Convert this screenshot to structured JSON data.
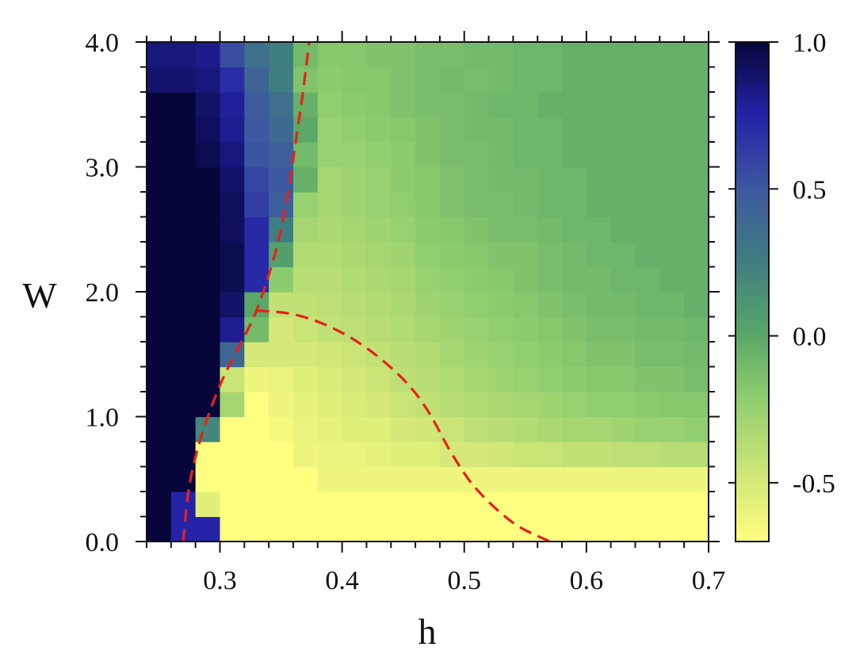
{
  "chart_data": {
    "type": "heatmap",
    "xlabel": "h",
    "ylabel": "W",
    "xlim": [
      0.24,
      0.7
    ],
    "ylim": [
      0.0,
      4.0
    ],
    "x_ticks": [
      {
        "value": 0.3,
        "label": "0.3"
      },
      {
        "value": 0.4,
        "label": "0.4"
      },
      {
        "value": 0.5,
        "label": "0.5"
      },
      {
        "value": 0.6,
        "label": "0.6"
      },
      {
        "value": 0.7,
        "label": "0.7"
      }
    ],
    "y_ticks": [
      {
        "value": 0.0,
        "label": "0.0"
      },
      {
        "value": 1.0,
        "label": "1.0"
      },
      {
        "value": 2.0,
        "label": "2.0"
      },
      {
        "value": 3.0,
        "label": "3.0"
      },
      {
        "value": 4.0,
        "label": "4.0"
      }
    ],
    "colorbar": {
      "range": [
        -0.7,
        1.0
      ],
      "ticks": [
        {
          "value": 1.0,
          "label": "1.0"
        },
        {
          "value": 0.5,
          "label": "0.5"
        },
        {
          "value": 0.0,
          "label": "0.0"
        },
        {
          "value": -0.5,
          "label": "-0.5"
        }
      ],
      "colormap": [
        {
          "v": -0.7,
          "color": "#ffff80"
        },
        {
          "v": -0.5,
          "color": "#d6e978"
        },
        {
          "v": -0.2,
          "color": "#8ccc6e"
        },
        {
          "v": 0.0,
          "color": "#5aa767"
        },
        {
          "v": 0.25,
          "color": "#3f7e80"
        },
        {
          "v": 0.5,
          "color": "#3d58a0"
        },
        {
          "v": 0.75,
          "color": "#2423a8"
        },
        {
          "v": 1.0,
          "color": "#06063a"
        }
      ]
    },
    "grid": {
      "x_start": 0.24,
      "x_step": 0.02,
      "nx": 23,
      "y_start": 0.0,
      "y_step": 0.2,
      "ny": 20
    },
    "values_rows_bottom_to_top": [
      [
        1.0,
        0.75,
        0.75,
        -0.7,
        -0.7,
        -0.7,
        -0.7,
        -0.7,
        -0.7,
        -0.7,
        -0.7,
        -0.7,
        -0.7,
        -0.7,
        -0.7,
        -0.7,
        -0.7,
        -0.7,
        -0.7,
        -0.7,
        -0.7,
        -0.7,
        -0.7
      ],
      [
        1.0,
        0.75,
        -0.55,
        -0.7,
        -0.7,
        -0.7,
        -0.7,
        -0.7,
        -0.7,
        -0.7,
        -0.7,
        -0.7,
        -0.7,
        -0.7,
        -0.7,
        -0.7,
        -0.7,
        -0.7,
        -0.7,
        -0.7,
        -0.7,
        -0.7,
        -0.7
      ],
      [
        1.0,
        1.0,
        -0.7,
        -0.7,
        -0.7,
        -0.7,
        -0.7,
        -0.62,
        -0.62,
        -0.62,
        -0.62,
        -0.62,
        -0.62,
        -0.62,
        -0.62,
        -0.62,
        -0.62,
        -0.62,
        -0.62,
        -0.62,
        -0.62,
        -0.62,
        -0.62
      ],
      [
        1.0,
        1.0,
        -0.7,
        -0.7,
        -0.7,
        -0.7,
        -0.62,
        -0.6,
        -0.6,
        -0.58,
        -0.55,
        -0.55,
        -0.5,
        -0.5,
        -0.48,
        -0.45,
        -0.45,
        -0.42,
        -0.42,
        -0.4,
        -0.4,
        -0.38,
        -0.38
      ],
      [
        1.0,
        1.0,
        0.2,
        -0.7,
        -0.7,
        -0.65,
        -0.6,
        -0.58,
        -0.55,
        -0.55,
        -0.5,
        -0.48,
        -0.45,
        -0.4,
        -0.38,
        -0.35,
        -0.32,
        -0.3,
        -0.3,
        -0.28,
        -0.25,
        -0.25,
        -0.22
      ],
      [
        1.0,
        1.0,
        1.0,
        -0.3,
        -0.7,
        -0.62,
        -0.58,
        -0.55,
        -0.52,
        -0.5,
        -0.45,
        -0.42,
        -0.38,
        -0.35,
        -0.32,
        -0.3,
        -0.28,
        -0.25,
        -0.22,
        -0.22,
        -0.2,
        -0.18,
        -0.18
      ],
      [
        1.0,
        1.0,
        1.0,
        -0.45,
        -0.62,
        -0.6,
        -0.55,
        -0.52,
        -0.5,
        -0.45,
        -0.4,
        -0.38,
        -0.35,
        -0.3,
        -0.28,
        -0.25,
        -0.22,
        -0.2,
        -0.18,
        -0.18,
        -0.15,
        -0.15,
        -0.12
      ],
      [
        1.0,
        1.0,
        1.0,
        0.4,
        -0.5,
        -0.5,
        -0.5,
        -0.48,
        -0.45,
        -0.42,
        -0.38,
        -0.35,
        -0.3,
        -0.28,
        -0.25,
        -0.22,
        -0.2,
        -0.18,
        -0.15,
        -0.15,
        -0.12,
        -0.12,
        -0.1
      ],
      [
        1.0,
        1.0,
        1.0,
        0.8,
        -0.1,
        -0.5,
        -0.45,
        -0.42,
        -0.4,
        -0.38,
        -0.35,
        -0.3,
        -0.28,
        -0.25,
        -0.22,
        -0.2,
        -0.18,
        -0.15,
        -0.12,
        -0.12,
        -0.1,
        -0.1,
        -0.08
      ],
      [
        1.0,
        1.0,
        1.0,
        0.9,
        0.0,
        -0.42,
        -0.42,
        -0.4,
        -0.38,
        -0.35,
        -0.32,
        -0.28,
        -0.25,
        -0.22,
        -0.2,
        -0.18,
        -0.15,
        -0.12,
        -0.1,
        -0.1,
        -0.08,
        -0.08,
        -0.05
      ],
      [
        1.0,
        1.0,
        1.0,
        0.95,
        0.72,
        -0.2,
        -0.38,
        -0.38,
        -0.35,
        -0.32,
        -0.3,
        -0.25,
        -0.22,
        -0.2,
        -0.18,
        -0.15,
        -0.12,
        -0.1,
        -0.1,
        -0.08,
        -0.08,
        -0.05,
        -0.05
      ],
      [
        1.0,
        1.0,
        1.0,
        0.95,
        0.72,
        0.05,
        -0.35,
        -0.35,
        -0.32,
        -0.3,
        -0.28,
        -0.22,
        -0.2,
        -0.18,
        -0.15,
        -0.15,
        -0.12,
        -0.1,
        -0.08,
        -0.08,
        -0.05,
        -0.05,
        -0.05
      ],
      [
        1.0,
        1.0,
        1.0,
        0.92,
        0.72,
        0.25,
        -0.3,
        -0.32,
        -0.3,
        -0.28,
        -0.25,
        -0.2,
        -0.18,
        -0.15,
        -0.12,
        -0.12,
        -0.1,
        -0.08,
        -0.08,
        -0.05,
        -0.05,
        -0.05,
        -0.05
      ],
      [
        1.0,
        1.0,
        1.0,
        0.92,
        0.62,
        0.45,
        -0.25,
        -0.3,
        -0.28,
        -0.25,
        -0.22,
        -0.18,
        -0.15,
        -0.12,
        -0.12,
        -0.1,
        -0.08,
        -0.08,
        -0.05,
        -0.05,
        -0.05,
        -0.05,
        -0.05
      ],
      [
        1.0,
        1.0,
        1.0,
        0.9,
        0.58,
        0.5,
        -0.05,
        -0.3,
        -0.28,
        -0.25,
        -0.2,
        -0.18,
        -0.15,
        -0.12,
        -0.1,
        -0.1,
        -0.08,
        -0.08,
        -0.05,
        -0.05,
        -0.05,
        -0.05,
        -0.05
      ],
      [
        1.0,
        1.0,
        0.95,
        0.85,
        0.52,
        0.45,
        -0.1,
        -0.25,
        -0.25,
        -0.22,
        -0.2,
        -0.15,
        -0.12,
        -0.12,
        -0.1,
        -0.08,
        -0.08,
        -0.05,
        -0.05,
        -0.05,
        -0.05,
        -0.05,
        -0.05
      ],
      [
        1.0,
        1.0,
        0.92,
        0.8,
        0.5,
        0.38,
        0.0,
        -0.25,
        -0.22,
        -0.2,
        -0.18,
        -0.15,
        -0.12,
        -0.1,
        -0.1,
        -0.08,
        -0.08,
        -0.05,
        -0.05,
        -0.05,
        -0.05,
        -0.05,
        -0.05
      ],
      [
        1.0,
        1.0,
        0.9,
        0.78,
        0.48,
        0.35,
        -0.05,
        -0.22,
        -0.2,
        -0.18,
        -0.15,
        -0.12,
        -0.12,
        -0.1,
        -0.08,
        -0.08,
        -0.05,
        -0.05,
        -0.05,
        -0.05,
        -0.05,
        -0.05,
        -0.05
      ],
      [
        0.88,
        0.88,
        0.85,
        0.7,
        0.42,
        0.25,
        -0.15,
        -0.2,
        -0.18,
        -0.18,
        -0.15,
        -0.12,
        -0.1,
        -0.12,
        -0.1,
        -0.08,
        -0.08,
        -0.05,
        -0.05,
        -0.05,
        -0.05,
        -0.05,
        -0.05
      ],
      [
        0.85,
        0.85,
        0.82,
        0.55,
        0.35,
        0.25,
        -0.1,
        -0.18,
        -0.18,
        -0.15,
        -0.15,
        -0.12,
        -0.12,
        -0.1,
        -0.1,
        -0.08,
        -0.08,
        -0.05,
        -0.05,
        -0.05,
        -0.05,
        -0.05,
        -0.05
      ]
    ],
    "boundaries": [
      {
        "style": "dashed",
        "color": "#e8201a",
        "points": [
          [
            0.27,
            0.0
          ],
          [
            0.275,
            0.45
          ],
          [
            0.285,
            0.85
          ],
          [
            0.3,
            1.25
          ],
          [
            0.315,
            1.55
          ],
          [
            0.33,
            1.85
          ],
          [
            0.345,
            2.3
          ],
          [
            0.355,
            2.75
          ],
          [
            0.362,
            3.2
          ],
          [
            0.368,
            3.6
          ],
          [
            0.373,
            4.0
          ]
        ]
      },
      {
        "style": "dashed",
        "color": "#e8201a",
        "points": [
          [
            0.33,
            1.85
          ],
          [
            0.36,
            1.82
          ],
          [
            0.39,
            1.72
          ],
          [
            0.42,
            1.55
          ],
          [
            0.45,
            1.3
          ],
          [
            0.47,
            1.05
          ],
          [
            0.49,
            0.7
          ],
          [
            0.51,
            0.42
          ],
          [
            0.54,
            0.15
          ],
          [
            0.57,
            0.0
          ]
        ]
      }
    ]
  }
}
